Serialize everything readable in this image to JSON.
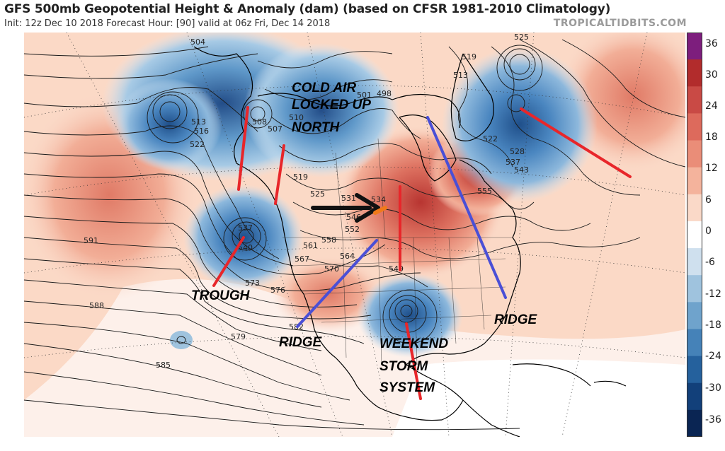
{
  "header": {
    "title": "GFS 500mb Geopotential Height & Anomaly (dam) (based on CFSR 1981-2010 Climatology)",
    "subtitle": "Init: 12z Dec 10 2018   Forecast Hour: [90]   valid at 06z Fri, Dec 14 2018",
    "credit": "TROPICALTIDBITS.COM"
  },
  "colorbar": {
    "labels": [
      "36",
      "30",
      "24",
      "18",
      "12",
      "6",
      "0",
      "-6",
      "-12",
      "-18",
      "-24",
      "-30",
      "-36"
    ],
    "colors": [
      "#7d1e7d",
      "#b22c2c",
      "#c94a45",
      "#dd6a5c",
      "#ea8d78",
      "#f4b39c",
      "#fad9c8",
      "#ffffff",
      "#cfe0ee",
      "#9fc3de",
      "#6fa3cc",
      "#4582b8",
      "#25619d",
      "#12407a",
      "#0a2553"
    ]
  },
  "annotations": {
    "cold_air_1": "COLD AIR",
    "cold_air_2": "LOCKED UP",
    "cold_air_3": "NORTH",
    "trough": "TROUGH",
    "ridge_west": "RIDGE",
    "ridge_east": "RIDGE",
    "storm_1": "WEEKEND",
    "storm_2": "STORM",
    "storm_3": "SYSTEM"
  },
  "contour_labels": [
    "504",
    "513",
    "516",
    "522",
    "508",
    "507",
    "510",
    "501",
    "498",
    "519",
    "525",
    "531",
    "534",
    "537",
    "540",
    "546",
    "552",
    "558",
    "561",
    "564",
    "567",
    "570",
    "573",
    "576",
    "579",
    "582",
    "585",
    "588",
    "591",
    "549",
    "543",
    "528",
    "537",
    "555",
    "525",
    "513",
    "519",
    "522"
  ],
  "colors": {
    "trough_line": "#e8262a",
    "ridge_line": "#4a4fd6",
    "arrow": "#111111",
    "arrow_tip": "#f07a1a"
  }
}
